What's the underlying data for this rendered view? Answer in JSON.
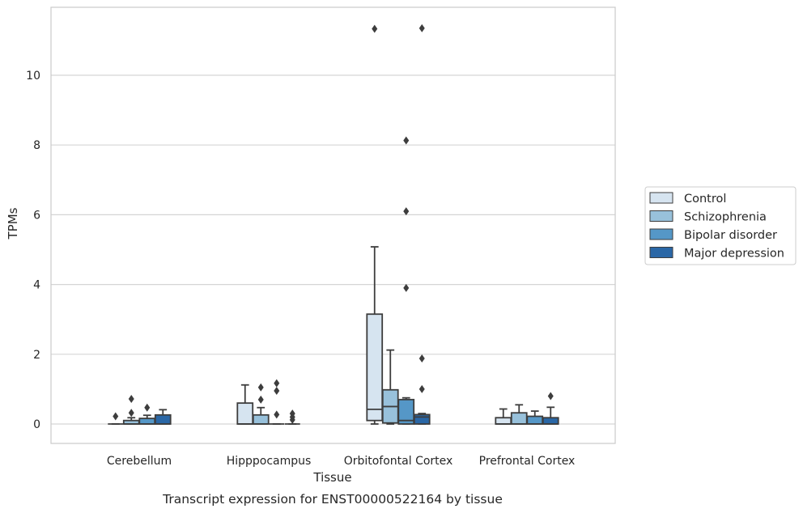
{
  "chart_data": {
    "type": "box",
    "title": "",
    "caption": "Transcript expression for ENST00000522164 by tissue",
    "xlabel": "Tissue",
    "ylabel": "TPMs",
    "ylim": [
      -0.55,
      12.0
    ],
    "yticks": [
      "0",
      "2",
      "4",
      "6",
      "8",
      "10"
    ],
    "yticks_values": [
      0,
      2,
      4,
      6,
      8,
      10
    ],
    "grid": "horizontal",
    "legend_position": "right",
    "colors": [
      "#d6e4f0",
      "#98c1db",
      "#5597c7",
      "#2a67a6"
    ],
    "categories": [
      "Cerebellum",
      "Hipppocampus",
      "Orbitofontal Cortex",
      "Prefrontal Cortex"
    ],
    "series": [
      {
        "name": "Control",
        "boxes": [
          {
            "whislo": 0,
            "q1": 0,
            "med": 0,
            "q3": 0,
            "whishi": 0,
            "fliers": [
              0.22
            ]
          },
          {
            "whislo": 0,
            "q1": 0,
            "med": 0,
            "q3": 0.6,
            "whishi": 1.12,
            "fliers": []
          },
          {
            "whislo": 0,
            "q1": 0.1,
            "med": 0.42,
            "q3": 3.15,
            "whishi": 5.08,
            "fliers": [
              11.33
            ]
          },
          {
            "whislo": 0,
            "q1": 0,
            "med": 0,
            "q3": 0.18,
            "whishi": 0.43,
            "fliers": []
          }
        ]
      },
      {
        "name": "Schizophrenia",
        "boxes": [
          {
            "whislo": 0,
            "q1": 0,
            "med": 0,
            "q3": 0.1,
            "whishi": 0.18,
            "fliers": [
              0.32,
              0.72
            ]
          },
          {
            "whislo": 0,
            "q1": 0,
            "med": 0,
            "q3": 0.26,
            "whishi": 0.47,
            "fliers": [
              0.7,
              1.05
            ]
          },
          {
            "whislo": 0,
            "q1": 0.03,
            "med": 0.5,
            "q3": 0.98,
            "whishi": 2.12,
            "fliers": []
          },
          {
            "whislo": 0,
            "q1": 0,
            "med": 0,
            "q3": 0.32,
            "whishi": 0.55,
            "fliers": []
          }
        ]
      },
      {
        "name": "Bipolar disorder",
        "boxes": [
          {
            "whislo": 0,
            "q1": 0,
            "med": 0,
            "q3": 0.16,
            "whishi": 0.25,
            "fliers": [
              0.47
            ]
          },
          {
            "whislo": 0,
            "q1": 0,
            "med": 0,
            "q3": 0,
            "whishi": 0,
            "fliers": [
              0.27,
              0.95,
              1.17
            ]
          },
          {
            "whislo": 0,
            "q1": 0,
            "med": 0.1,
            "q3": 0.7,
            "whishi": 0.75,
            "fliers": [
              3.9,
              6.1,
              8.13
            ]
          },
          {
            "whislo": 0,
            "q1": 0,
            "med": 0,
            "q3": 0.22,
            "whishi": 0.37,
            "fliers": []
          }
        ]
      },
      {
        "name": "Major depression",
        "boxes": [
          {
            "whislo": 0,
            "q1": 0,
            "med": 0,
            "q3": 0.26,
            "whishi": 0.41,
            "fliers": []
          },
          {
            "whislo": 0,
            "q1": 0,
            "med": 0,
            "q3": 0,
            "whishi": 0,
            "fliers": [
              0.12,
              0.2,
              0.3
            ]
          },
          {
            "whislo": 0,
            "q1": 0,
            "med": 0.2,
            "q3": 0.27,
            "whishi": 0.3,
            "fliers": [
              1.0,
              1.88,
              11.35
            ]
          },
          {
            "whislo": 0,
            "q1": 0,
            "med": 0,
            "q3": 0.18,
            "whishi": 0.48,
            "fliers": [
              0.8
            ]
          }
        ]
      }
    ]
  }
}
